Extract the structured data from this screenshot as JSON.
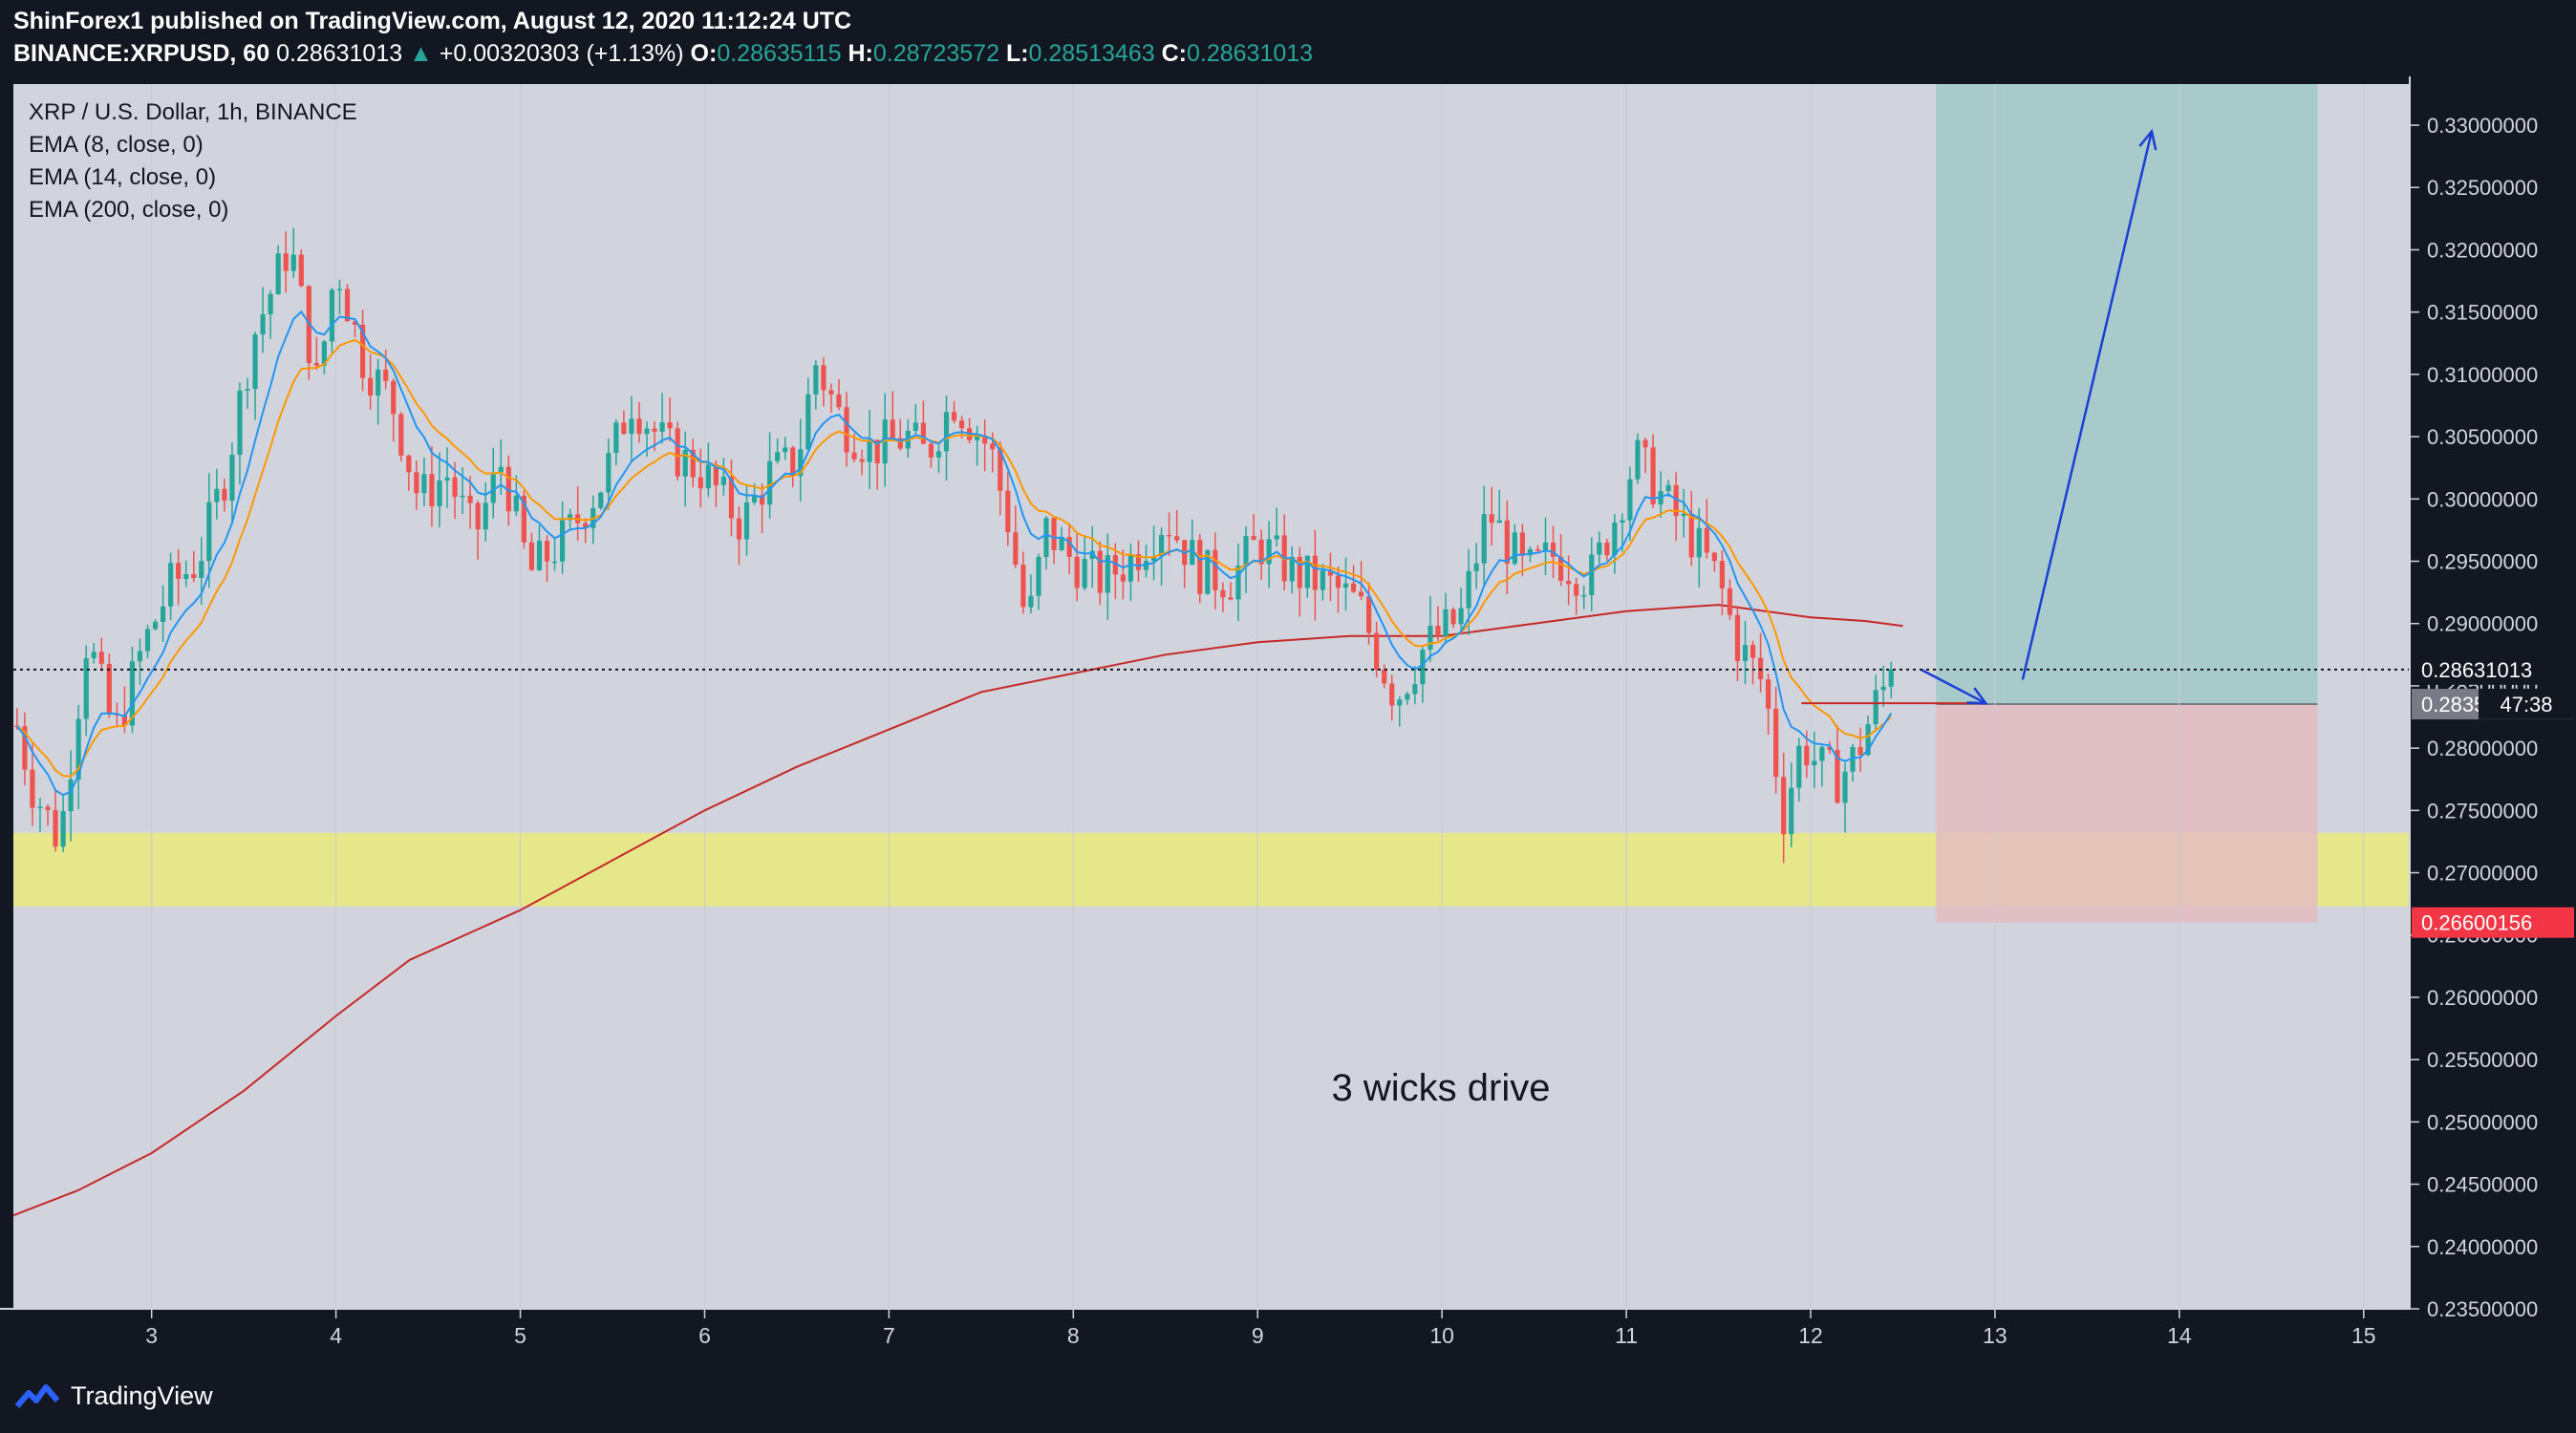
{
  "header": {
    "published": "ShinForex1 published on TradingView.com, August 12, 2020 11:12:24 UTC",
    "symbol": "BINANCE:XRPUSD, 60",
    "last": "0.28631013",
    "change_arrow": "▲",
    "change": "+0.00320303 (+1.13%)",
    "o_label": "O:",
    "o": "0.28635115",
    "h_label": "H:",
    "h": "0.28723572",
    "l_label": "L:",
    "l": "0.28513463",
    "c_label": "C:",
    "c": "0.28631013"
  },
  "legend": {
    "title": "XRP / U.S. Dollar, 1h, BINANCE",
    "ema8": "EMA (8, close, 0)",
    "ema14": "EMA (14, close, 0)",
    "ema200": "EMA (200, close, 0)"
  },
  "annotation": "3 wicks drive",
  "footer": {
    "brand": "TradingView"
  },
  "colors": {
    "background": "#131722",
    "plot": "#d1d4dc",
    "up": "#26a69a",
    "down": "#ef5350",
    "ema8": "#2196f3",
    "ema14": "#ff9800",
    "ema200": "#c62828",
    "zone": "#e6e68a",
    "target": "#a5c9c9",
    "stop": "#e3bcc0",
    "arrow": "#1c3fd6"
  },
  "chart_data": {
    "type": "candlestick",
    "symbol": "XRPUSD",
    "timeframe": "1h",
    "x_ticks": [
      "3",
      "4",
      "5",
      "6",
      "7",
      "8",
      "9",
      "10",
      "11",
      "12",
      "13",
      "14",
      "15"
    ],
    "x_range": [
      2.25,
      15.25
    ],
    "y_ticks": [
      "0.23500000",
      "0.24000000",
      "0.24500000",
      "0.25000000",
      "0.25500000",
      "0.26000000",
      "0.26500000",
      "0.27000000",
      "0.27500000",
      "0.28000000",
      "0.28500000",
      "0.29000000",
      "0.29500000",
      "0.30000000",
      "0.30500000",
      "0.31000000",
      "0.31500000",
      "0.32000000",
      "0.32500000",
      "0.33000000"
    ],
    "ylim": [
      0.235,
      0.3333
    ],
    "price_labels": [
      {
        "value": 0.28631013,
        "text": "0.28631013",
        "color": "#131722",
        "text_color": "#ffffff"
      },
      {
        "value": 0.28353332,
        "text": "0.28353332",
        "color": "#787b86",
        "text_color": "#ffffff"
      },
      {
        "value": 0.26600156,
        "text": "0.26600156",
        "color": "#f23645",
        "text_color": "#ffffff"
      }
    ],
    "countdown": "47:38",
    "current_price": 0.28631013,
    "path": [
      [
        2.25,
        0.283
      ],
      [
        2.35,
        0.277
      ],
      [
        2.5,
        0.2725
      ],
      [
        2.65,
        0.289
      ],
      [
        2.8,
        0.281
      ],
      [
        2.95,
        0.288
      ],
      [
        3.1,
        0.293
      ],
      [
        3.25,
        0.295
      ],
      [
        3.4,
        0.302
      ],
      [
        3.55,
        0.313
      ],
      [
        3.75,
        0.3205
      ],
      [
        3.9,
        0.309
      ],
      [
        4.0,
        0.319
      ],
      [
        4.15,
        0.311
      ],
      [
        4.3,
        0.308
      ],
      [
        4.45,
        0.3
      ],
      [
        4.6,
        0.302
      ],
      [
        4.75,
        0.297
      ],
      [
        4.9,
        0.303
      ],
      [
        5.05,
        0.294
      ],
      [
        5.25,
        0.297
      ],
      [
        5.45,
        0.3015
      ],
      [
        5.6,
        0.308
      ],
      [
        5.8,
        0.304
      ],
      [
        6.0,
        0.302
      ],
      [
        6.2,
        0.298
      ],
      [
        6.35,
        0.302
      ],
      [
        6.5,
        0.303
      ],
      [
        6.6,
        0.311
      ],
      [
        6.75,
        0.306
      ],
      [
        6.9,
        0.304
      ],
      [
        7.1,
        0.305
      ],
      [
        7.2,
        0.3035
      ],
      [
        7.35,
        0.308
      ],
      [
        7.55,
        0.304
      ],
      [
        7.65,
        0.298
      ],
      [
        7.75,
        0.2895
      ],
      [
        7.85,
        0.2975
      ],
      [
        8.0,
        0.295
      ],
      [
        8.15,
        0.2935
      ],
      [
        8.3,
        0.295
      ],
      [
        8.5,
        0.2985
      ],
      [
        8.7,
        0.294
      ],
      [
        8.85,
        0.2935
      ],
      [
        9.0,
        0.2965
      ],
      [
        9.2,
        0.294
      ],
      [
        9.4,
        0.293
      ],
      [
        9.55,
        0.2915
      ],
      [
        9.65,
        0.2875
      ],
      [
        9.75,
        0.284
      ],
      [
        9.9,
        0.288
      ],
      [
        10.1,
        0.2905
      ],
      [
        10.25,
        0.299
      ],
      [
        10.45,
        0.294
      ],
      [
        10.6,
        0.2955
      ],
      [
        10.8,
        0.2935
      ],
      [
        10.95,
        0.299
      ],
      [
        11.05,
        0.3035
      ],
      [
        11.2,
        0.3
      ],
      [
        11.35,
        0.297
      ],
      [
        11.5,
        0.2935
      ],
      [
        11.6,
        0.2885
      ],
      [
        11.75,
        0.285
      ],
      [
        11.85,
        0.2745
      ],
      [
        11.95,
        0.2805
      ],
      [
        12.05,
        0.2785
      ],
      [
        12.15,
        0.2775
      ],
      [
        12.25,
        0.2795
      ],
      [
        12.35,
        0.2835
      ],
      [
        12.45,
        0.2863
      ]
    ],
    "ema200": [
      [
        2.25,
        0.2425
      ],
      [
        2.6,
        0.2445
      ],
      [
        3.0,
        0.2475
      ],
      [
        3.5,
        0.2525
      ],
      [
        4.0,
        0.2585
      ],
      [
        4.4,
        0.263
      ],
      [
        5.0,
        0.267
      ],
      [
        5.5,
        0.271
      ],
      [
        6.0,
        0.275
      ],
      [
        6.5,
        0.2785
      ],
      [
        7.0,
        0.2815
      ],
      [
        7.5,
        0.2845
      ],
      [
        8.0,
        0.286
      ],
      [
        8.5,
        0.2875
      ],
      [
        9.0,
        0.2885
      ],
      [
        9.5,
        0.289
      ],
      [
        10.0,
        0.289
      ],
      [
        10.5,
        0.29
      ],
      [
        11.0,
        0.291
      ],
      [
        11.5,
        0.2915
      ],
      [
        12.0,
        0.2905
      ],
      [
        12.3,
        0.2902
      ],
      [
        12.5,
        0.2898
      ]
    ],
    "support_zone": [
      0.2673,
      0.2732
    ],
    "position": {
      "x_start": 12.68,
      "x_end": 14.75,
      "entry": 0.28353332,
      "target": 0.3333,
      "stop": 0.26600156
    },
    "arrows": [
      {
        "from": [
          12.6,
          0.2863
        ],
        "to": [
          12.95,
          0.2836
        ]
      },
      {
        "from": [
          13.15,
          0.2855
        ],
        "to": [
          13.85,
          0.3295
        ]
      }
    ],
    "resistance_line": {
      "x": [
        11.95,
        12.95
      ],
      "y": 0.2836
    }
  }
}
